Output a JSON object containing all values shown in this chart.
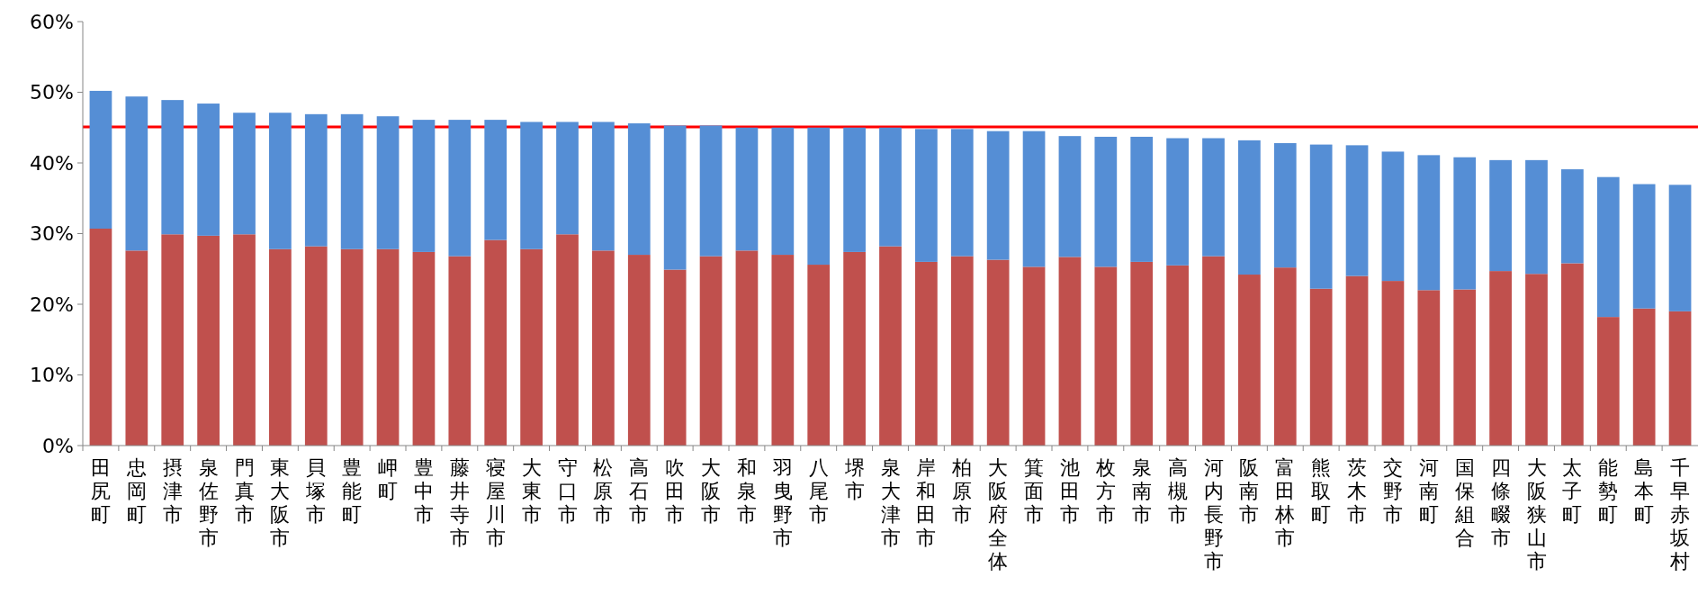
{
  "chart_data": {
    "type": "bar",
    "stacked": true,
    "categories": [
      "田尻町",
      "忠岡町",
      "摂津市",
      "泉佐野市",
      "門真市",
      "東大阪市",
      "貝塚市",
      "豊能町",
      "岬町",
      "豊中市",
      "藤井寺市",
      "寝屋川市",
      "大東市",
      "守口市",
      "松原市",
      "高石市",
      "吹田市",
      "大阪市",
      "和泉市",
      "羽曳野市",
      "八尾市",
      "堺市",
      "泉大津市",
      "岸和田市",
      "柏原市",
      "大阪府全体",
      "箕面市",
      "池田市",
      "枚方市",
      "泉南市",
      "高槻市",
      "河内長野市",
      "阪南市",
      "富田林市",
      "熊取町",
      "茨木市",
      "交野市",
      "河南町",
      "国保組合",
      "四條畷市",
      "大阪狭山市",
      "太子町",
      "能勢町",
      "島本町",
      "千早赤坂村"
    ],
    "series": [
      {
        "color": "#c0504d",
        "values": [
          30.7,
          27.6,
          29.9,
          29.7,
          29.9,
          27.8,
          28.2,
          27.8,
          27.8,
          27.4,
          26.8,
          29.1,
          27.8,
          29.9,
          27.6,
          27.0,
          24.9,
          26.8,
          27.6,
          27.0,
          25.6,
          27.4,
          28.2,
          26.0,
          26.8,
          26.3,
          25.3,
          26.7,
          25.3,
          26.0,
          25.5,
          26.8,
          24.2,
          25.2,
          22.2,
          24.0,
          23.3,
          22.0,
          22.1,
          24.7,
          24.3,
          25.8,
          18.2,
          19.4,
          19.0
        ]
      },
      {
        "color": "#558ed5",
        "values": [
          19.5,
          21.8,
          19.0,
          18.7,
          17.2,
          19.3,
          18.7,
          19.1,
          18.8,
          18.7,
          19.3,
          17.0,
          18.0,
          15.9,
          18.2,
          18.6,
          20.4,
          18.5,
          17.4,
          18.0,
          19.4,
          17.6,
          16.8,
          18.8,
          18.0,
          18.2,
          19.2,
          17.1,
          18.4,
          17.7,
          18.0,
          16.7,
          19.0,
          17.6,
          20.4,
          18.5,
          18.3,
          19.1,
          18.7,
          15.7,
          16.1,
          13.3,
          19.8,
          17.6,
          17.9
        ]
      }
    ],
    "ylim": [
      0,
      60
    ],
    "yticks": [
      {
        "value": 0,
        "label": "0%"
      },
      {
        "value": 10,
        "label": "10%"
      },
      {
        "value": 20,
        "label": "20%"
      },
      {
        "value": 30,
        "label": "30%"
      },
      {
        "value": 40,
        "label": "40%"
      },
      {
        "value": 50,
        "label": "50%"
      },
      {
        "value": 60,
        "label": "60%"
      }
    ],
    "ref_lines": [
      {
        "axis": "y",
        "value": 45.1,
        "color": "#ff0000"
      }
    ],
    "grid": false
  }
}
